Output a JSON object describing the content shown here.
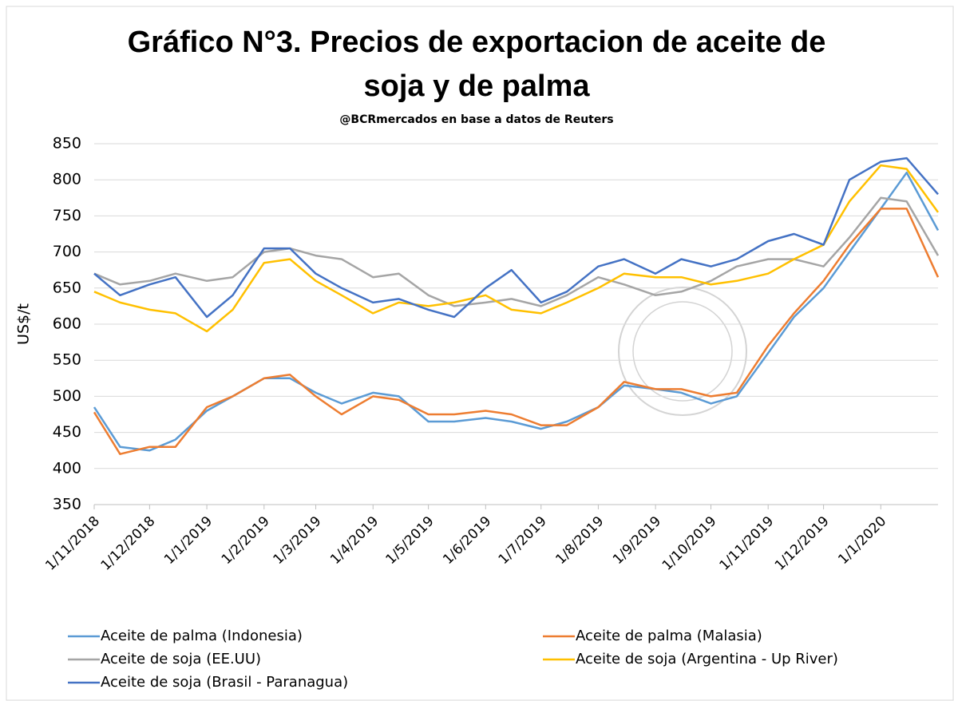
{
  "chart_data": {
    "type": "line",
    "title": "Gráfico N°3. Precios de exportacion de aceite de soja y de palma",
    "subtitle": "@BCRmercados en base a datos de Reuters",
    "y_label": "US$/t",
    "x": [
      "2018-11-01",
      "2018-11-15",
      "2018-12-01",
      "2018-12-15",
      "2019-01-01",
      "2019-01-15",
      "2019-02-01",
      "2019-02-15",
      "2019-03-01",
      "2019-03-15",
      "2019-04-01",
      "2019-04-15",
      "2019-05-01",
      "2019-05-15",
      "2019-06-01",
      "2019-06-15",
      "2019-07-01",
      "2019-07-15",
      "2019-08-01",
      "2019-08-15",
      "2019-09-01",
      "2019-09-15",
      "2019-10-01",
      "2019-10-15",
      "2019-11-01",
      "2019-11-15",
      "2019-12-01",
      "2019-12-15",
      "2020-01-01",
      "2020-01-15",
      "2020-02-01"
    ],
    "series": [
      {
        "name": "Aceite de palma (Indonesia)",
        "color": "#5b9bd5",
        "values": [
          485,
          430,
          425,
          440,
          480,
          500,
          525,
          525,
          505,
          490,
          505,
          500,
          465,
          465,
          470,
          465,
          455,
          465,
          485,
          515,
          510,
          505,
          490,
          500,
          560,
          610,
          650,
          700,
          760,
          810,
          730
        ]
      },
      {
        "name": "Aceite de palma (Malasia)",
        "color": "#ed7d31",
        "values": [
          478,
          420,
          430,
          430,
          485,
          500,
          525,
          530,
          500,
          475,
          500,
          495,
          475,
          475,
          480,
          475,
          460,
          460,
          485,
          520,
          510,
          510,
          500,
          505,
          570,
          615,
          660,
          710,
          760,
          760,
          665
        ]
      },
      {
        "name": "Aceite de soja (EE.UU)",
        "color": "#a5a5a5",
        "values": [
          670,
          655,
          660,
          670,
          660,
          665,
          700,
          705,
          695,
          690,
          665,
          670,
          640,
          625,
          630,
          635,
          625,
          640,
          665,
          655,
          640,
          645,
          660,
          680,
          690,
          690,
          680,
          720,
          775,
          770,
          695
        ]
      },
      {
        "name": "Aceite de soja (Argentina - Up River)",
        "color": "#ffc000",
        "values": [
          645,
          630,
          620,
          615,
          590,
          620,
          685,
          690,
          660,
          640,
          615,
          630,
          625,
          630,
          640,
          620,
          615,
          630,
          650,
          670,
          665,
          665,
          655,
          660,
          670,
          690,
          710,
          770,
          820,
          815,
          755
        ]
      },
      {
        "name": "Aceite de soja (Brasil - Paranagua)",
        "color": "#4472c4",
        "values": [
          670,
          640,
          655,
          665,
          610,
          640,
          705,
          705,
          670,
          650,
          630,
          635,
          620,
          610,
          650,
          675,
          630,
          645,
          680,
          690,
          670,
          690,
          680,
          690,
          715,
          725,
          710,
          800,
          825,
          830,
          780
        ]
      }
    ],
    "xlim": [
      "2018-11-01",
      "2020-02-01"
    ],
    "xticks": [
      {
        "value": "2018-11-01",
        "label": "1/11/2018"
      },
      {
        "value": "2018-12-01",
        "label": "1/12/2018"
      },
      {
        "value": "2019-01-01",
        "label": "1/1/2019"
      },
      {
        "value": "2019-02-01",
        "label": "1/2/2019"
      },
      {
        "value": "2019-03-01",
        "label": "1/3/2019"
      },
      {
        "value": "2019-04-01",
        "label": "1/4/2019"
      },
      {
        "value": "2019-05-01",
        "label": "1/5/2019"
      },
      {
        "value": "2019-06-01",
        "label": "1/6/2019"
      },
      {
        "value": "2019-07-01",
        "label": "1/7/2019"
      },
      {
        "value": "2019-08-01",
        "label": "1/8/2019"
      },
      {
        "value": "2019-09-01",
        "label": "1/9/2019"
      },
      {
        "value": "2019-10-01",
        "label": "1/10/2019"
      },
      {
        "value": "2019-11-01",
        "label": "1/11/2019"
      },
      {
        "value": "2019-12-01",
        "label": "1/12/2019"
      },
      {
        "value": "2020-01-01",
        "label": "1/1/2020"
      }
    ],
    "ylim": [
      350,
      850
    ],
    "yticks": [
      350,
      400,
      450,
      500,
      550,
      600,
      650,
      700,
      750,
      800,
      850
    ],
    "grid": true
  }
}
